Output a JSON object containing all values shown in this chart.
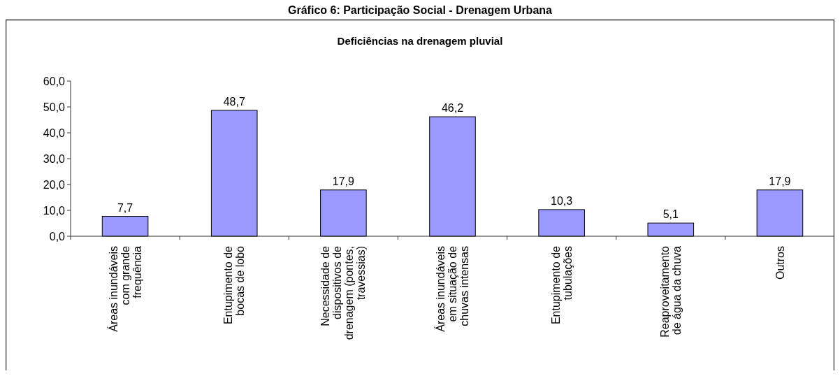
{
  "chart_data": {
    "type": "bar",
    "title": "Gráfico 6: Participação Social - Drenagem Urbana",
    "subtitle": "Deficiências na drenagem pluvial",
    "categories": [
      "Áreas inundáveis com grande frequência",
      "Entupimento de bocas de lobo",
      "Necessidade de dispositivos de drenagem (pontes, travessias)",
      "Áreas inundáveis em situação de chuvas intensas",
      "Entupimento de tubulações",
      "Reaproveitamento de água da chuva",
      "Outros"
    ],
    "values": [
      7.7,
      48.7,
      17.9,
      46.2,
      10.3,
      5.1,
      17.9
    ],
    "value_labels": [
      "7,7",
      "48,7",
      "17,9",
      "46,2",
      "10,3",
      "5,1",
      "17,9"
    ],
    "color": "#9999ff",
    "ylim": [
      0,
      60
    ],
    "yticks": [
      {
        "value": 0,
        "label": "0,0"
      },
      {
        "value": 10,
        "label": "10,0"
      },
      {
        "value": 20,
        "label": "20,0"
      },
      {
        "value": 30,
        "label": "30,0"
      },
      {
        "value": 40,
        "label": "40,0"
      },
      {
        "value": 50,
        "label": "50,0"
      },
      {
        "value": 60,
        "label": "60,0"
      }
    ],
    "grid": false
  }
}
